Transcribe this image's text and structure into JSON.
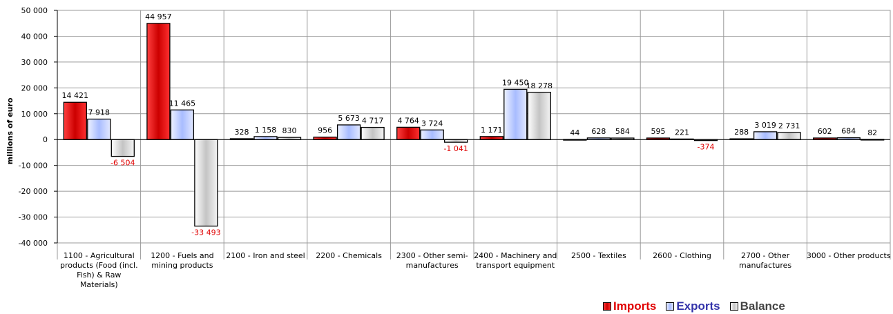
{
  "chart_data": {
    "type": "bar",
    "ylabel": "millions of euro",
    "ylim": [
      -40000,
      50000
    ],
    "yticks": [
      50000,
      40000,
      30000,
      20000,
      10000,
      0,
      -10000,
      -20000,
      -30000,
      -40000
    ],
    "ytick_labels": [
      "50 000",
      "40 000",
      "30 000",
      "20 000",
      "10 000",
      "0",
      "-10 000",
      "-20 000",
      "-30 000",
      "-40 000"
    ],
    "grid": true,
    "legend_position": "bottom-right",
    "categories": [
      [
        "1100 - Agricultural",
        "products (Food (incl.",
        "Fish) & Raw",
        "Materials)"
      ],
      [
        "1200 - Fuels and",
        "mining products"
      ],
      [
        "2100 - Iron and steel"
      ],
      [
        "2200 - Chemicals"
      ],
      [
        "2300 - Other semi-",
        "manufactures"
      ],
      [
        "2400 - Machinery and",
        "transport equipment"
      ],
      [
        "2500 - Textiles"
      ],
      [
        "2600 - Clothing"
      ],
      [
        "2700 - Other",
        "manufactures"
      ],
      [
        "3000 - Other products"
      ]
    ],
    "series": [
      {
        "name": "Imports",
        "color": "#e00000",
        "legend_color": "#e00000",
        "values": [
          14421,
          44957,
          328,
          956,
          4764,
          1171,
          44,
          595,
          288,
          602
        ],
        "labels": [
          "14 421",
          "44 957",
          "328",
          "956",
          "4 764",
          "1 171",
          "44",
          "595",
          "288",
          "602"
        ]
      },
      {
        "name": "Exports",
        "color": "#c8d4ff",
        "legend_color": "#3333aa",
        "values": [
          7918,
          11465,
          1158,
          5673,
          3724,
          19450,
          628,
          221,
          3019,
          684
        ],
        "labels": [
          "7 918",
          "11 465",
          "1 158",
          "5 673",
          "3 724",
          "19 450",
          "628",
          "221",
          "3 019",
          "684"
        ]
      },
      {
        "name": "Balance",
        "color": "#d8d8d8",
        "legend_color": "#444444",
        "values": [
          -6504,
          -33493,
          830,
          4717,
          -1041,
          18278,
          584,
          -374,
          2731,
          82
        ],
        "labels": [
          "-6 504",
          "-33 493",
          "830",
          "4 717",
          "-1 041",
          "18 278",
          "584",
          "-374",
          "2 731",
          "82"
        ]
      }
    ]
  }
}
